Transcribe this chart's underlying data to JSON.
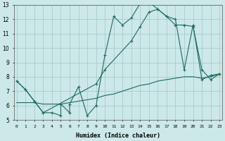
{
  "xlabel": "Humidex (Indice chaleur)",
  "bg_color": "#cce8e8",
  "grid_color": "#aacccc",
  "line_color": "#1e6b5e",
  "xlim": [
    -0.3,
    23.3
  ],
  "ylim": [
    5,
    13
  ],
  "yticks": [
    5,
    6,
    7,
    8,
    9,
    10,
    11,
    12,
    13
  ],
  "xticks": [
    0,
    1,
    2,
    3,
    4,
    5,
    6,
    7,
    8,
    9,
    10,
    11,
    12,
    13,
    14,
    15,
    16,
    17,
    18,
    19,
    20,
    21,
    22,
    23
  ],
  "line_zigzag_x": [
    0,
    1,
    2,
    3,
    4,
    5,
    5,
    6,
    6,
    7,
    8,
    9,
    10,
    11,
    12,
    13,
    14,
    15,
    16,
    17,
    18,
    19,
    20,
    21,
    22,
    23
  ],
  "line_zigzag_y": [
    7.7,
    7.1,
    6.3,
    5.5,
    5.5,
    5.3,
    6.1,
    5.5,
    6.1,
    7.3,
    5.3,
    6.0,
    9.5,
    12.2,
    11.6,
    12.1,
    13.1,
    13.2,
    12.7,
    12.2,
    12.0,
    8.5,
    11.6,
    7.8,
    8.1,
    8.2
  ],
  "line_upper_x": [
    0,
    1,
    2,
    3,
    9,
    10,
    13,
    14,
    15,
    16,
    17,
    18,
    19,
    20,
    21,
    22,
    23
  ],
  "line_upper_y": [
    7.7,
    7.1,
    6.3,
    5.5,
    7.5,
    8.5,
    10.5,
    11.5,
    12.5,
    12.7,
    12.2,
    11.6,
    11.6,
    11.5,
    8.5,
    7.8,
    8.2
  ],
  "line_lower_x": [
    0,
    1,
    2,
    3,
    4,
    5,
    6,
    7,
    8,
    9,
    10,
    11,
    12,
    13,
    14,
    15,
    16,
    17,
    18,
    19,
    20,
    21,
    22,
    23
  ],
  "line_lower_y": [
    6.2,
    6.2,
    6.2,
    6.1,
    6.1,
    6.1,
    6.2,
    6.3,
    6.4,
    6.5,
    6.7,
    6.8,
    7.0,
    7.2,
    7.4,
    7.5,
    7.7,
    7.8,
    7.9,
    8.0,
    8.0,
    7.9,
    8.0,
    8.2
  ]
}
